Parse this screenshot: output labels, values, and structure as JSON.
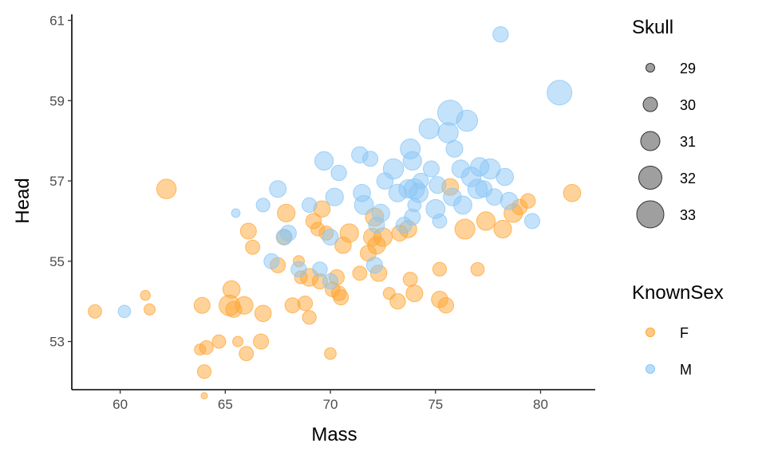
{
  "chart_data": {
    "type": "scatter",
    "xlabel": "Mass",
    "ylabel": "Head",
    "xlim": [
      57.7,
      82.6
    ],
    "ylim": [
      51.8,
      61.15
    ],
    "xticks": [
      60,
      65,
      70,
      75,
      80
    ],
    "yticks": [
      53,
      55,
      57,
      59,
      61
    ],
    "grid": false,
    "size_legend": {
      "title": "Skull",
      "levels": [
        29,
        30,
        31,
        32,
        33
      ],
      "color": "#7f7f7f"
    },
    "color_legend": {
      "title": "KnownSex",
      "levels": [
        {
          "label": "F",
          "color": "#ffa533"
        },
        {
          "label": "M",
          "color": "#8ac6f5"
        }
      ]
    },
    "series": [
      {
        "name": "F",
        "color": "#ffa533",
        "points": [
          [
            58.8,
            53.75,
            30.2
          ],
          [
            61.2,
            54.15,
            29.4
          ],
          [
            61.4,
            53.8,
            29.7
          ],
          [
            62.2,
            56.8,
            31.6
          ],
          [
            63.8,
            52.8,
            29.7
          ],
          [
            63.9,
            53.9,
            30.8
          ],
          [
            64.0,
            52.25,
            30.3
          ],
          [
            64.1,
            52.85,
            30.3
          ],
          [
            64.0,
            51.65,
            28.6
          ],
          [
            64.7,
            53.0,
            30.2
          ],
          [
            65.2,
            53.9,
            31.9
          ],
          [
            65.3,
            54.3,
            31.1
          ],
          [
            65.4,
            53.8,
            30.8
          ],
          [
            65.6,
            53.0,
            29.5
          ],
          [
            65.9,
            53.9,
            31.2
          ],
          [
            66.0,
            52.7,
            30.4
          ],
          [
            66.1,
            55.75,
            30.8
          ],
          [
            66.3,
            55.35,
            30.4
          ],
          [
            66.7,
            53.0,
            30.6
          ],
          [
            66.8,
            53.7,
            30.9
          ],
          [
            67.5,
            54.9,
            30.6
          ],
          [
            67.8,
            55.6,
            30.4
          ],
          [
            67.9,
            56.2,
            31.2
          ],
          [
            68.2,
            53.9,
            30.6
          ],
          [
            68.5,
            55.0,
            29.7
          ],
          [
            68.6,
            54.6,
            30.1
          ],
          [
            68.8,
            53.95,
            30.5
          ],
          [
            69.0,
            53.6,
            30.3
          ],
          [
            69.0,
            54.6,
            31.2
          ],
          [
            69.2,
            56.0,
            30.7
          ],
          [
            69.4,
            55.8,
            30.3
          ],
          [
            69.5,
            54.5,
            30.6
          ],
          [
            69.6,
            56.3,
            30.9
          ],
          [
            69.8,
            55.7,
            30.4
          ],
          [
            70.0,
            52.7,
            29.8
          ],
          [
            70.1,
            54.3,
            30.5
          ],
          [
            70.3,
            54.6,
            30.6
          ],
          [
            70.4,
            54.2,
            30.5
          ],
          [
            70.5,
            54.1,
            30.6
          ],
          [
            70.6,
            55.4,
            30.9
          ],
          [
            70.9,
            55.7,
            31.4
          ],
          [
            71.4,
            54.7,
            30.4
          ],
          [
            71.8,
            55.2,
            30.8
          ],
          [
            72.0,
            55.6,
            31.2
          ],
          [
            72.1,
            56.1,
            31.3
          ],
          [
            72.3,
            54.7,
            30.9
          ],
          [
            72.2,
            55.4,
            31.2
          ],
          [
            72.5,
            55.6,
            31.4
          ],
          [
            72.8,
            54.2,
            29.9
          ],
          [
            73.2,
            54.0,
            30.7
          ],
          [
            73.3,
            55.7,
            30.8
          ],
          [
            73.7,
            55.8,
            31.1
          ],
          [
            73.8,
            54.55,
            30.4
          ],
          [
            74.0,
            54.2,
            31.0
          ],
          [
            75.2,
            54.8,
            30.3
          ],
          [
            75.2,
            54.05,
            30.9
          ],
          [
            75.5,
            53.9,
            30.7
          ],
          [
            75.7,
            56.85,
            31.0
          ],
          [
            77.0,
            54.8,
            30.2
          ],
          [
            76.4,
            55.8,
            31.7
          ],
          [
            77.4,
            56.0,
            31.4
          ],
          [
            78.2,
            55.8,
            31.2
          ],
          [
            78.7,
            56.2,
            31.4
          ],
          [
            79.0,
            56.35,
            30.7
          ],
          [
            79.4,
            56.5,
            30.5
          ],
          [
            81.5,
            56.7,
            31.1
          ]
        ]
      },
      {
        "name": "M",
        "color": "#8ac6f5",
        "points": [
          [
            60.2,
            53.75,
            30.0
          ],
          [
            65.5,
            56.2,
            29.1
          ],
          [
            66.8,
            56.4,
            30.3
          ],
          [
            67.2,
            55.0,
            30.6
          ],
          [
            67.5,
            56.8,
            31.0
          ],
          [
            67.8,
            55.6,
            30.8
          ],
          [
            68.0,
            55.7,
            30.8
          ],
          [
            68.5,
            54.8,
            30.7
          ],
          [
            69.0,
            56.4,
            30.5
          ],
          [
            69.5,
            54.8,
            30.5
          ],
          [
            69.7,
            57.5,
            31.4
          ],
          [
            70.0,
            54.5,
            30.6
          ],
          [
            70.0,
            55.6,
            30.8
          ],
          [
            70.2,
            56.6,
            31.2
          ],
          [
            70.4,
            57.2,
            30.7
          ],
          [
            71.4,
            57.65,
            30.9
          ],
          [
            71.5,
            56.7,
            31.1
          ],
          [
            71.6,
            56.4,
            31.5
          ],
          [
            71.9,
            57.55,
            30.6
          ],
          [
            72.1,
            54.9,
            30.8
          ],
          [
            72.2,
            55.9,
            30.8
          ],
          [
            72.4,
            56.2,
            31.2
          ],
          [
            72.6,
            57.0,
            30.9
          ],
          [
            73.0,
            57.3,
            31.8
          ],
          [
            73.2,
            56.7,
            31.2
          ],
          [
            73.5,
            55.9,
            30.8
          ],
          [
            73.7,
            56.8,
            31.4
          ],
          [
            73.8,
            57.8,
            31.7
          ],
          [
            73.9,
            57.5,
            31.4
          ],
          [
            73.9,
            56.1,
            30.8
          ],
          [
            74.0,
            56.4,
            30.2
          ],
          [
            74.0,
            56.8,
            31.8
          ],
          [
            74.2,
            56.7,
            31.5
          ],
          [
            74.3,
            57.0,
            30.7
          ],
          [
            74.7,
            58.3,
            31.8
          ],
          [
            74.8,
            57.3,
            30.8
          ],
          [
            75.0,
            56.3,
            31.5
          ],
          [
            75.1,
            56.9,
            31.0
          ],
          [
            75.2,
            56.0,
            30.4
          ],
          [
            75.6,
            58.2,
            31.8
          ],
          [
            75.7,
            58.7,
            32.9
          ],
          [
            75.8,
            56.6,
            31.2
          ],
          [
            75.9,
            57.8,
            31.0
          ],
          [
            76.2,
            57.3,
            31.2
          ],
          [
            76.3,
            56.4,
            31.3
          ],
          [
            76.5,
            58.5,
            32.0
          ],
          [
            76.7,
            57.1,
            31.6
          ],
          [
            77.0,
            56.8,
            31.6
          ],
          [
            77.1,
            57.35,
            31.4
          ],
          [
            77.3,
            56.8,
            30.9
          ],
          [
            77.6,
            57.3,
            31.8
          ],
          [
            77.8,
            56.6,
            30.9
          ],
          [
            78.1,
            60.65,
            30.7
          ],
          [
            78.3,
            57.1,
            31.1
          ],
          [
            78.5,
            56.5,
            31.1
          ],
          [
            79.6,
            56.0,
            30.6
          ],
          [
            80.9,
            59.2,
            32.8
          ]
        ]
      }
    ]
  }
}
